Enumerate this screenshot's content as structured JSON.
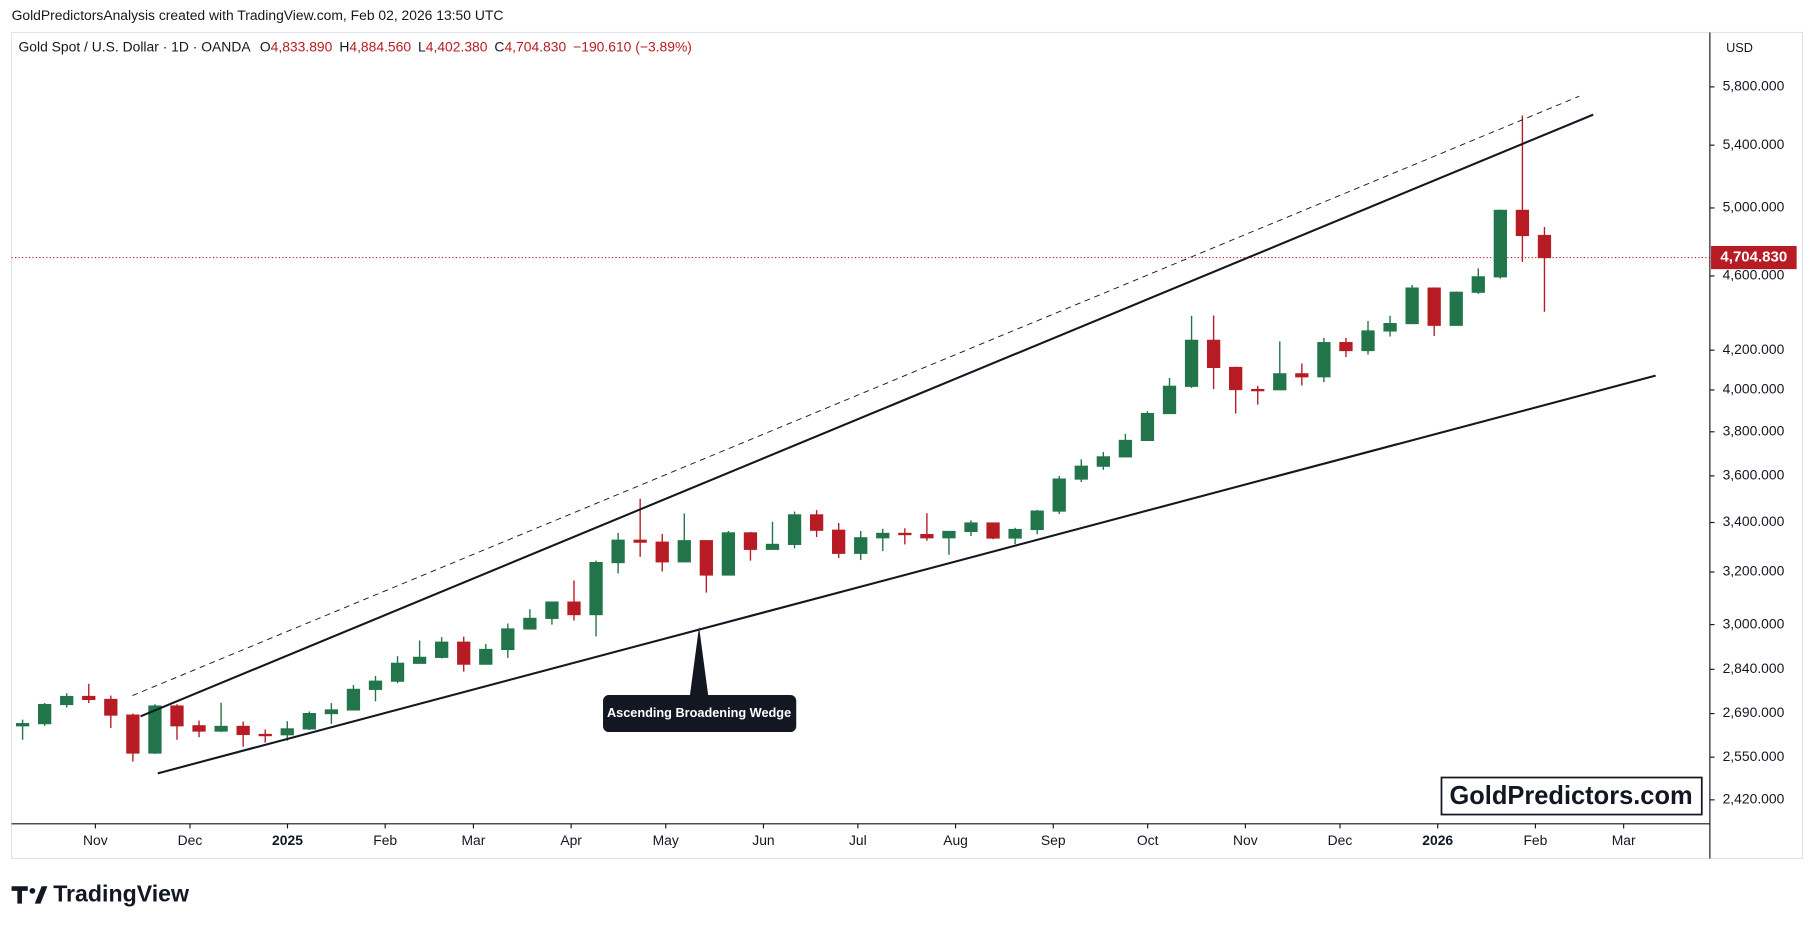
{
  "header": "GoldPredictorsAnalysis created with TradingView.com, Feb 02, 2026 13:50 UTC",
  "logo": "TradingView",
  "watermark": "GoldPredictors.com",
  "chart_data": {
    "type": "candlestick",
    "legend": {
      "symbol": "Gold Spot / U.S. Dollar · 1D · OANDA",
      "values": [
        {
          "prefix": "O",
          "label": "4,833.890"
        },
        {
          "prefix": "H",
          "label": "4,884.560"
        },
        {
          "prefix": "L",
          "label": "4,402.380"
        },
        {
          "prefix": "C",
          "label": "4,704.830"
        }
      ],
      "change": "−190.610 (−3.89%)"
    },
    "currency": "USD",
    "log_scale": true,
    "grid": false,
    "up_color": "#22754a",
    "down_color": "#b71c24",
    "x": [
      -3.3,
      -2.3,
      -1.3,
      -0.3,
      0.7,
      1.7,
      2.7,
      3.7,
      4.7,
      5.7,
      6.7,
      7.7,
      8.7,
      9.7,
      10.7,
      11.7,
      12.7,
      13.7,
      14.7,
      15.7,
      16.7,
      17.7,
      18.7,
      19.7,
      20.7,
      21.7,
      22.7,
      23.7,
      24.7,
      25.7,
      26.7,
      27.7,
      28.7,
      29.7,
      30.7,
      31.7,
      32.7,
      33.7,
      34.7,
      35.7,
      36.7,
      37.7,
      38.7,
      39.7,
      40.7,
      41.7,
      42.7,
      43.7,
      44.7,
      45.7,
      46.7,
      47.7,
      48.7,
      49.7,
      50.7,
      51.7,
      52.7,
      53.7,
      54.7,
      55.7,
      56.7,
      57.7,
      58.7,
      59.7,
      60.7,
      61.7,
      62.7,
      63.7,
      64.7,
      65.7
    ],
    "open": [
      2650,
      2657,
      2720,
      2747,
      2737,
      2685,
      2563,
      2715,
      2650,
      2633,
      2648,
      2622,
      2621,
      2640,
      2690,
      2702,
      2771,
      2799,
      2861,
      2882,
      2936,
      2858,
      2910,
      2984,
      3023,
      3084,
      3037,
      3237,
      3327,
      3319,
      3240,
      3325,
      3188,
      3357,
      3290,
      3310,
      3432,
      3368,
      3274,
      3337,
      3355,
      3350,
      3337,
      3363,
      3398,
      3336,
      3371,
      3448,
      3586,
      3643,
      3685,
      3760,
      3886,
      4018,
      4251,
      4112,
      4002,
      4001,
      4080,
      4065,
      4239,
      4198,
      4300,
      4339,
      4532,
      4330,
      4509,
      4595,
      4985,
      4833.89
    ],
    "high": [
      2670,
      2725,
      2758,
      2790,
      2750,
      2690,
      2721,
      2721,
      2667,
      2726,
      2664,
      2638,
      2665,
      2697,
      2725,
      2786,
      2817,
      2886,
      2942,
      2954,
      2956,
      2930,
      3004,
      3057,
      3086,
      3167,
      3245,
      3357,
      3500,
      3353,
      3438,
      3328,
      3365,
      3361,
      3403,
      3446,
      3452,
      3398,
      3365,
      3374,
      3376,
      3439,
      3363,
      3409,
      3400,
      3378,
      3453,
      3600,
      3674,
      3707,
      3791,
      3897,
      4059,
      4381,
      4382,
      4115,
      4020,
      4245,
      4132,
      4264,
      4264,
      4353,
      4381,
      4550,
      4536,
      4512,
      4643,
      4990,
      5600,
      4884.56
    ],
    "low": [
      2605,
      2650,
      2710,
      2725,
      2643,
      2536,
      2560,
      2605,
      2613,
      2630,
      2583,
      2596,
      2602,
      2636,
      2656,
      2700,
      2731,
      2792,
      2860,
      2878,
      2832,
      2856,
      2880,
      2982,
      3000,
      3015,
      2957,
      3194,
      3260,
      3202,
      3240,
      3120,
      3188,
      3245,
      3290,
      3294,
      3340,
      3255,
      3247,
      3283,
      3310,
      3325,
      3268,
      3344,
      3331,
      3311,
      3351,
      3436,
      3573,
      3627,
      3685,
      3760,
      3885,
      4010,
      4004,
      3886,
      3929,
      4000,
      4022,
      4038,
      4165,
      4178,
      4271,
      4339,
      4274,
      4330,
      4500,
      4585,
      4680,
      4402.38
    ],
    "close": [
      2657,
      2720,
      2747,
      2737,
      2685,
      2563,
      2715,
      2650,
      2633,
      2648,
      2622,
      2621,
      2640,
      2690,
      2702,
      2771,
      2799,
      2861,
      2882,
      2936,
      2858,
      2910,
      2984,
      3023,
      3084,
      3037,
      3237,
      3327,
      3319,
      3240,
      3325,
      3188,
      3357,
      3290,
      3310,
      3432,
      3368,
      3274,
      3337,
      3355,
      3350,
      3337,
      3363,
      3398,
      3336,
      3371,
      3448,
      3586,
      3643,
      3685,
      3760,
      3886,
      4018,
      4251,
      4112,
      4002,
      4001,
      4080,
      4065,
      4239,
      4198,
      4300,
      4339,
      4532,
      4330,
      4509,
      4595,
      4985,
      4834,
      4704.83
    ],
    "xlim": [
      -3.8,
      73.2
    ],
    "xticks": [
      {
        "value": 0,
        "label": "Nov"
      },
      {
        "value": 4.29,
        "label": "Dec"
      },
      {
        "value": 8.71,
        "label": "2025"
      },
      {
        "value": 13.14,
        "label": "Feb"
      },
      {
        "value": 17.14,
        "label": "Mar"
      },
      {
        "value": 21.57,
        "label": "Apr"
      },
      {
        "value": 25.86,
        "label": "May"
      },
      {
        "value": 30.29,
        "label": "Jun"
      },
      {
        "value": 34.57,
        "label": "Jul"
      },
      {
        "value": 39,
        "label": "Aug"
      },
      {
        "value": 43.43,
        "label": "Sep"
      },
      {
        "value": 47.71,
        "label": "Oct"
      },
      {
        "value": 52.14,
        "label": "Nov"
      },
      {
        "value": 56.43,
        "label": "Dec"
      },
      {
        "value": 60.86,
        "label": "2026"
      },
      {
        "value": 65.29,
        "label": "Feb"
      },
      {
        "value": 69.29,
        "label": "Mar"
      }
    ],
    "ylim": [
      2350,
      6200
    ],
    "yticks": [
      {
        "value": 2420,
        "label": "2,420.000"
      },
      {
        "value": 2550,
        "label": "2,550.000"
      },
      {
        "value": 2690,
        "label": "2,690.000"
      },
      {
        "value": 2840,
        "label": "2,840.000"
      },
      {
        "value": 3000,
        "label": "3,000.000"
      },
      {
        "value": 3200,
        "label": "3,200.000"
      },
      {
        "value": 3400,
        "label": "3,400.000"
      },
      {
        "value": 3600,
        "label": "3,600.000"
      },
      {
        "value": 3800,
        "label": "3,800.000"
      },
      {
        "value": 4000,
        "label": "4,000.000"
      },
      {
        "value": 4200,
        "label": "4,200.000"
      },
      {
        "value": 4600,
        "label": "4,600.000"
      },
      {
        "value": 5000,
        "label": "5,000.000"
      },
      {
        "value": 5400,
        "label": "5,400.000"
      },
      {
        "value": 5800,
        "label": "5,800.000"
      }
    ],
    "last_price": {
      "value": 4704.83,
      "label": "4,704.830"
    },
    "trendlines": [
      {
        "style": "solid",
        "x": [
          2.05,
          67.91
        ],
        "y": [
          2681,
          5606
        ]
      },
      {
        "style": "dashed",
        "x": [
          1.68,
          67.28
        ],
        "y": [
          2750,
          5734
        ]
      },
      {
        "style": "solid",
        "x": [
          2.83,
          70.74
        ],
        "y": [
          2500,
          4071
        ]
      }
    ],
    "annotation": {
      "text": "Ascending Broadening Wedge",
      "x": 27.37,
      "y": 2992
    }
  }
}
